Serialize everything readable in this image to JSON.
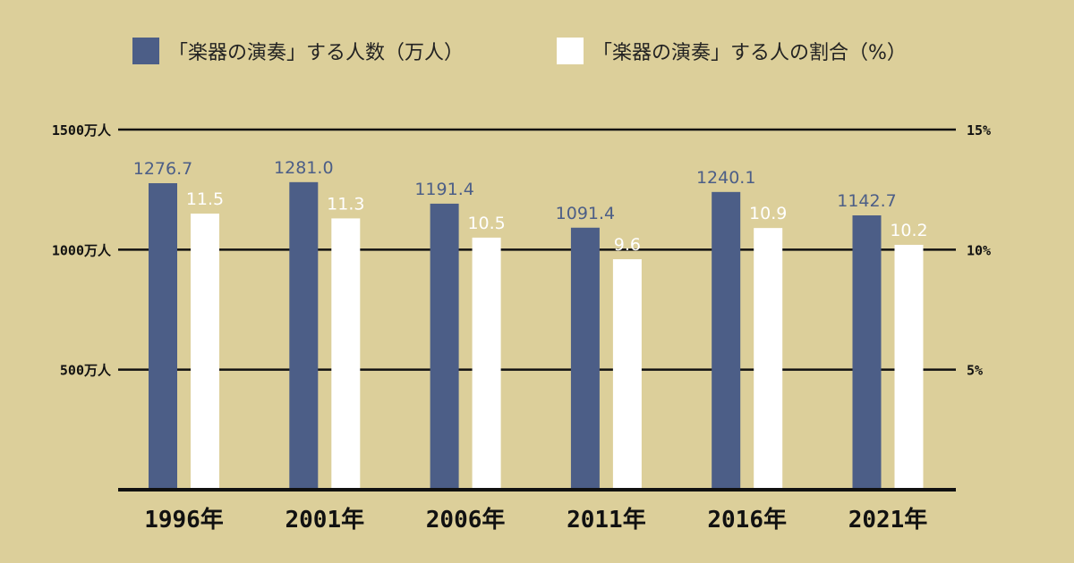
{
  "colors": {
    "background": "#dccf9a",
    "series_players": "#4c5e87",
    "series_ratio": "#ffffff",
    "axis": "#111111"
  },
  "legend": {
    "players": "「楽器の演奏」する人数（万人）",
    "ratio": "「楽器の演奏」する人の割合（%）"
  },
  "chart_data": {
    "type": "bar",
    "categories": [
      "1996年",
      "2001年",
      "2006年",
      "2011年",
      "2016年",
      "2021年"
    ],
    "series": [
      {
        "name": "「楽器の演奏」する人数（万人）",
        "axis": "left",
        "values": [
          1276.7,
          1281.0,
          1191.4,
          1091.4,
          1240.1,
          1142.7
        ],
        "labels": [
          "1276.7",
          "1281.0",
          "1191.4",
          "1091.4",
          "1240.1",
          "1142.7"
        ]
      },
      {
        "name": "「楽器の演奏」する人の割合（%）",
        "axis": "right",
        "values": [
          11.5,
          11.3,
          10.5,
          9.6,
          10.9,
          10.2
        ],
        "labels": [
          "11.5",
          "11.3",
          "10.5",
          "9.6",
          "10.9",
          "10.2"
        ]
      }
    ],
    "y_left": {
      "range": [
        0,
        1500
      ],
      "ticks": [
        500,
        1000,
        1500
      ],
      "tick_labels": [
        "500万人",
        "1000万人",
        "1500万人"
      ]
    },
    "y_right": {
      "range": [
        0,
        15
      ],
      "ticks": [
        5,
        10,
        15
      ],
      "tick_labels": [
        "5%",
        "10%",
        "15%"
      ]
    },
    "grid": true,
    "legend_position": "top"
  }
}
